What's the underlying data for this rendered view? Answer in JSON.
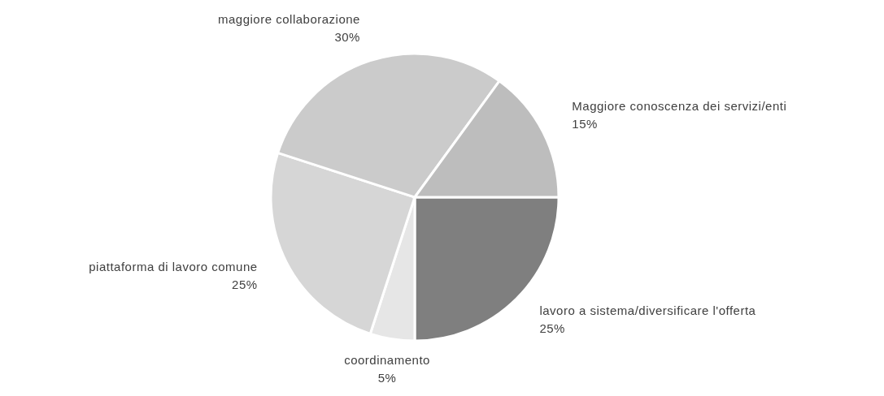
{
  "chart_data": {
    "type": "pie",
    "categories": [
      "lavoro a sistema/diversificare l'offerta",
      "coordinamento",
      "piattaforma di lavoro comune",
      "maggiore collaborazione",
      "Maggiore conoscenza dei servizi/enti"
    ],
    "values": [
      25,
      5,
      25,
      30,
      15
    ],
    "value_labels": [
      "25%",
      "5%",
      "25%",
      "30%",
      "15%"
    ],
    "colors": [
      "#7f7f7f",
      "#e6e6e6",
      "#d6d6d6",
      "#cbcbcb",
      "#bdbdbd"
    ]
  }
}
